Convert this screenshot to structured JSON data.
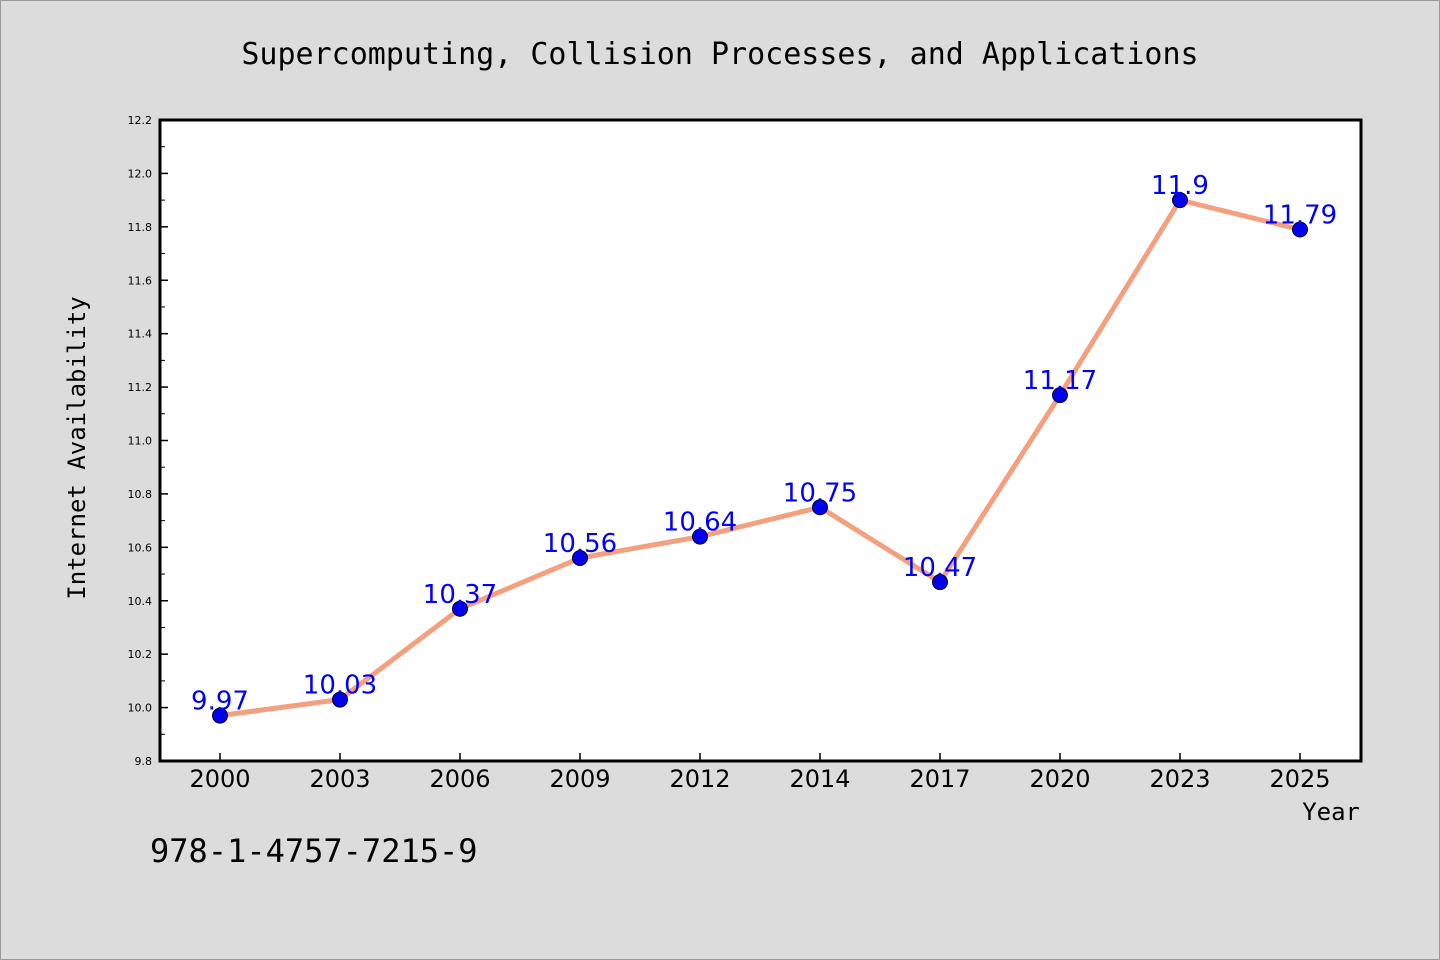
{
  "chart_data": {
    "type": "line",
    "title": "Supercomputing, Collision Processes, and Applications",
    "xlabel": "Year",
    "ylabel": "Internet Availability",
    "categories": [
      "2000",
      "2003",
      "2006",
      "2009",
      "2012",
      "2014",
      "2017",
      "2020",
      "2023",
      "2025"
    ],
    "values": [
      9.97,
      10.03,
      10.37,
      10.56,
      10.64,
      10.75,
      10.47,
      11.17,
      11.9,
      11.79
    ],
    "data_labels": [
      "9.97",
      "10.03",
      "10.37",
      "10.56",
      "10.64",
      "10.75",
      "10.47",
      "11.17",
      "11.9",
      "11.79"
    ],
    "ylim": [
      9.8,
      12.2
    ],
    "yticks": [
      "9.8",
      "10.0",
      "10.2",
      "10.4",
      "10.6",
      "10.8",
      "11.0",
      "11.2",
      "11.4",
      "11.6",
      "11.8",
      "12.0",
      "12.2"
    ],
    "grid": false,
    "legend": "none",
    "colors": {
      "line": "#f4a07e",
      "marker": "#0000ee",
      "label": "#0000ff",
      "background": "#dcdcdc",
      "plot_area": "#ffffff"
    }
  },
  "footer": {
    "isbn": "978-1-4757-7215-9"
  }
}
